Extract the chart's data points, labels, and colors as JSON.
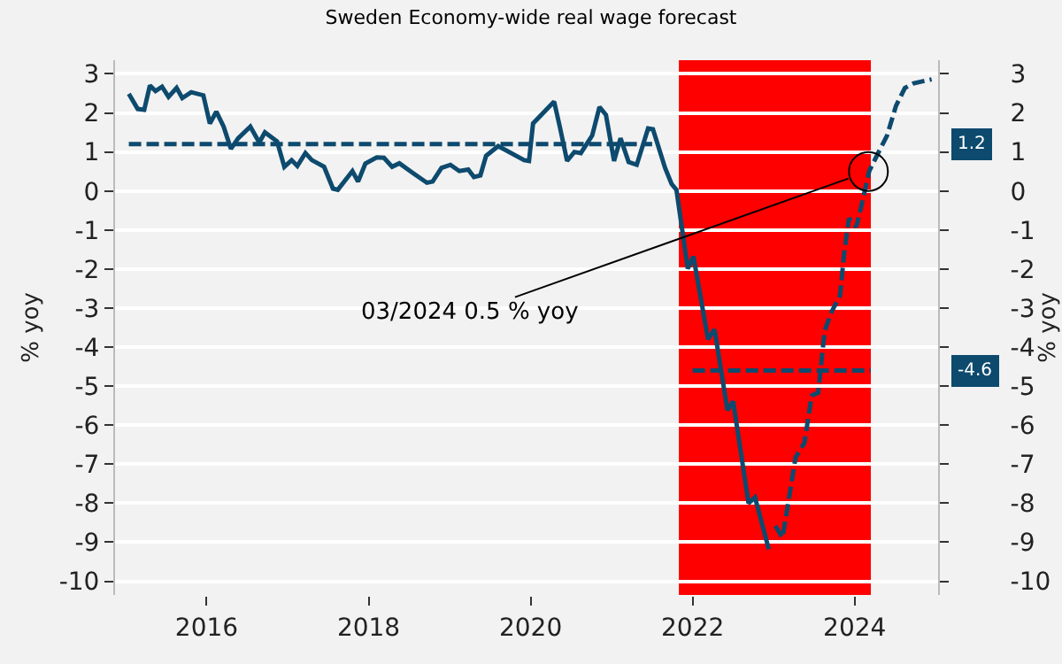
{
  "chart_data": {
    "type": "line",
    "title": "Sweden Economy-wide real wage forecast",
    "ylabel": "% yoy",
    "y2label": "% yoy",
    "xlim": [
      2014.87,
      2025.03
    ],
    "xticks": [
      2016,
      2018,
      2020,
      2022,
      2024
    ],
    "ylim": [
      -10.35,
      3.35
    ],
    "yticks": [
      3,
      2,
      1,
      0,
      -1,
      -2,
      -3,
      -4,
      -5,
      -6,
      -7,
      -8,
      -9,
      -10
    ],
    "y2lim": [
      -10.35,
      3.35
    ],
    "y2ticks": [
      3,
      2,
      1,
      0,
      -1,
      -2,
      -3,
      -4,
      -5,
      -6,
      -7,
      -8,
      -9,
      -10
    ],
    "grid": "y",
    "bands": [
      {
        "axis": "x",
        "from": 2021.83,
        "to": 2024.2,
        "color": "#ff0000"
      }
    ],
    "series": [
      {
        "color": "#0d4a6e",
        "line_style": "solid",
        "x": [
          2015.04,
          2015.15,
          2015.23,
          2015.3,
          2015.37,
          2015.45,
          2015.53,
          2015.63,
          2015.7,
          2015.81,
          2015.96,
          2016.04,
          2016.12,
          2016.21,
          2016.3,
          2016.39,
          2016.54,
          2016.65,
          2016.72,
          2016.87,
          2016.96,
          2017.05,
          2017.12,
          2017.22,
          2017.3,
          2017.45,
          2017.56,
          2017.62,
          2017.8,
          2017.87,
          2017.96,
          2018.1,
          2018.19,
          2018.29,
          2018.38,
          2018.54,
          2018.72,
          2018.79,
          2018.9,
          2019.01,
          2019.12,
          2019.23,
          2019.3,
          2019.38,
          2019.45,
          2019.6,
          2019.92,
          2019.98,
          2020.03,
          2020.29,
          2020.36,
          2020.45,
          2020.54,
          2020.62,
          2020.76,
          2020.85,
          2020.93,
          2021.03,
          2021.11,
          2021.21,
          2021.31,
          2021.45,
          2021.51,
          2021.66,
          2021.74,
          2021.8,
          2021.94,
          2022.01,
          2022.19,
          2022.27,
          2022.43,
          2022.5,
          2022.69,
          2022.77,
          2022.94
        ],
        "values": [
          2.49,
          2.1,
          2.08,
          2.7,
          2.56,
          2.67,
          2.41,
          2.64,
          2.38,
          2.53,
          2.45,
          1.73,
          2.03,
          1.65,
          1.08,
          1.35,
          1.65,
          1.24,
          1.5,
          1.27,
          0.62,
          0.79,
          0.64,
          0.97,
          0.79,
          0.62,
          0.06,
          0.03,
          0.51,
          0.24,
          0.7,
          0.86,
          0.85,
          0.62,
          0.71,
          0.47,
          0.21,
          0.24,
          0.59,
          0.67,
          0.51,
          0.55,
          0.36,
          0.4,
          0.9,
          1.15,
          0.79,
          0.77,
          1.73,
          2.29,
          1.65,
          0.77,
          1.0,
          0.97,
          1.42,
          2.15,
          1.95,
          0.77,
          1.35,
          0.74,
          0.67,
          1.6,
          1.58,
          0.59,
          0.18,
          0.03,
          -1.99,
          -1.68,
          -3.8,
          -3.55,
          -5.62,
          -5.39,
          -8.0,
          -7.85,
          -9.18
        ]
      },
      {
        "color": "#0d4a6e",
        "line_style": "dashed",
        "x": [
          2023.02,
          2023.11,
          2023.27,
          2023.38,
          2023.47,
          2023.55,
          2023.63,
          2023.71,
          2023.82,
          2023.87,
          2023.93,
          2024.02,
          2024.09,
          2024.18,
          2024.29,
          2024.4,
          2024.51,
          2024.62,
          2024.73,
          2024.95
        ],
        "values": [
          -8.58,
          -8.88,
          -6.83,
          -6.45,
          -5.24,
          -5.17,
          -3.58,
          -3.12,
          -2.67,
          -1.6,
          -0.7,
          -0.92,
          -0.32,
          0.51,
          0.97,
          1.42,
          2.18,
          2.64,
          2.76,
          2.86
        ]
      },
      {
        "color": "#0d4a6e",
        "line_style": "dashed",
        "x": [
          2015.04,
          2021.5
        ],
        "values": [
          1.2,
          1.2
        ]
      },
      {
        "color": "#0d4a6e",
        "line_style": "dashed",
        "x": [
          2022.0,
          2024.2
        ],
        "values": [
          -4.6,
          -4.6
        ]
      }
    ],
    "annotations": [
      {
        "text": "03/2024 0.5 % yoy",
        "x": 2024.17,
        "y": 0.5
      },
      "1.2",
      "-4.6"
    ]
  }
}
